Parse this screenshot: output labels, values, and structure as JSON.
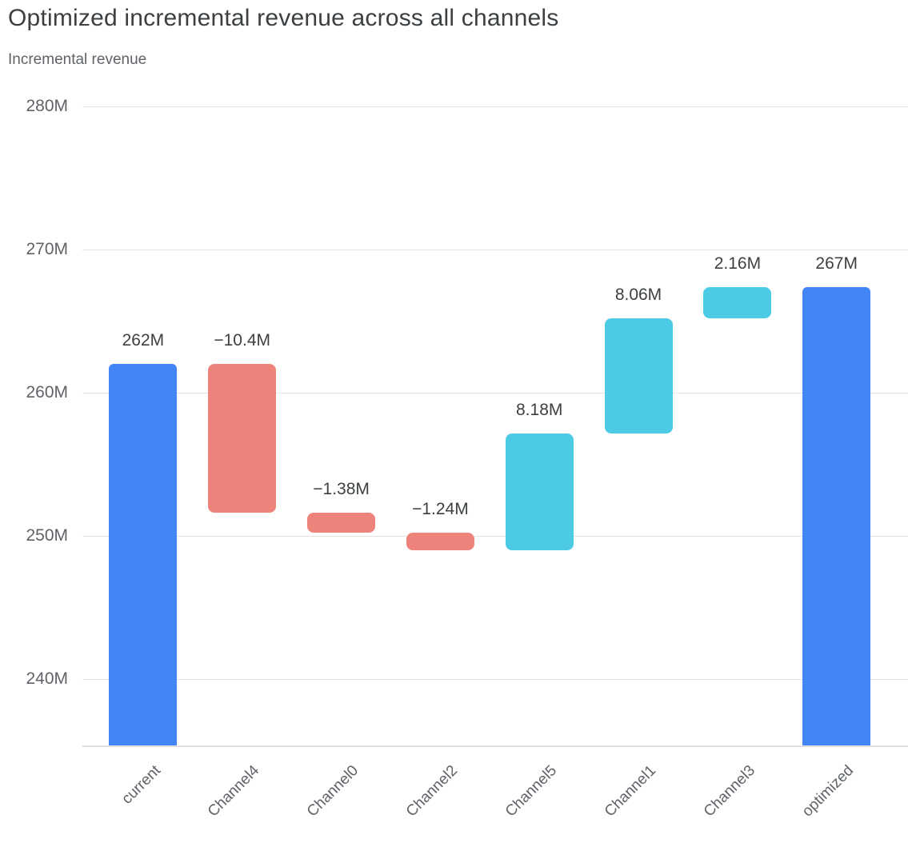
{
  "header": {
    "title": "Optimized incremental revenue across all channels",
    "subtitle": "Incremental revenue"
  },
  "chart_data": {
    "type": "bar",
    "subtype": "waterfall",
    "title": "Optimized incremental revenue across all channels",
    "ylabel": "Incremental revenue",
    "xlabel": "",
    "grid": true,
    "legend_position": "none",
    "ylim": [
      235,
      281
    ],
    "y_ticks": [
      {
        "label": "280M",
        "value": 280
      },
      {
        "label": "270M",
        "value": 270
      },
      {
        "label": "260M",
        "value": 260
      },
      {
        "label": "250M",
        "value": 250
      },
      {
        "label": "240M",
        "value": 240
      }
    ],
    "categories": [
      "current",
      "Channel4",
      "Channel0",
      "Channel2",
      "Channel5",
      "Channel1",
      "Channel3",
      "optimized"
    ],
    "bars": [
      {
        "category": "current",
        "kind": "total",
        "delta": 262,
        "start": 0,
        "end": 262,
        "label": "262M"
      },
      {
        "category": "Channel4",
        "kind": "decrease",
        "delta": -10.4,
        "start": 262,
        "end": 251.6,
        "label": "−10.4M"
      },
      {
        "category": "Channel0",
        "kind": "decrease",
        "delta": -1.38,
        "start": 251.6,
        "end": 250.22,
        "label": "−1.38M"
      },
      {
        "category": "Channel2",
        "kind": "decrease",
        "delta": -1.24,
        "start": 250.22,
        "end": 248.98,
        "label": "−1.24M"
      },
      {
        "category": "Channel5",
        "kind": "increase",
        "delta": 8.18,
        "start": 248.98,
        "end": 257.16,
        "label": "8.18M"
      },
      {
        "category": "Channel1",
        "kind": "increase",
        "delta": 8.06,
        "start": 257.16,
        "end": 265.22,
        "label": "8.06M"
      },
      {
        "category": "Channel3",
        "kind": "increase",
        "delta": 2.16,
        "start": 265.22,
        "end": 267.38,
        "label": "2.16M"
      },
      {
        "category": "optimized",
        "kind": "total",
        "delta": 267.38,
        "start": 0,
        "end": 267.38,
        "label": "267M"
      }
    ],
    "colors": {
      "total": "#4285F4",
      "increase": "#4DCBE4",
      "decrease": "#EE837B",
      "gridline": "#E3E3E3",
      "axis_line": "#DEDEE3",
      "title_text": "#3C4043",
      "muted_text": "#5F6368",
      "bar_label_text": "#3C4043"
    }
  }
}
